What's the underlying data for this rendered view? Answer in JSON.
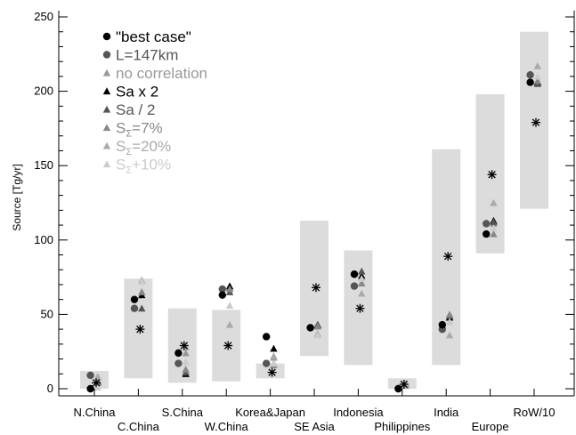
{
  "chart_data": {
    "type": "scatter",
    "ylabel": "Source [Tg/yr]",
    "ylim": [
      0,
      250
    ],
    "yticks": [
      0,
      50,
      100,
      150,
      200,
      250
    ],
    "grid": false,
    "legend_position": "top-left",
    "categories": [
      "N.China",
      "C.China",
      "S.China",
      "W.China",
      "Korea&Japan",
      "SE Asia",
      "Indonesia",
      "Philippines",
      "India",
      "Europe",
      "RoW/10"
    ],
    "ranges": [
      [
        0,
        12
      ],
      [
        7,
        74
      ],
      [
        4,
        54
      ],
      [
        5,
        53
      ],
      [
        7,
        17
      ],
      [
        22,
        113
      ],
      [
        16,
        93
      ],
      [
        0,
        7
      ],
      [
        16,
        161
      ],
      [
        91,
        198
      ],
      [
        121,
        240
      ]
    ],
    "reference": {
      "symbol": "asterisk",
      "color": "#000000",
      "values": [
        4,
        40,
        29,
        29,
        11,
        68,
        54,
        3,
        89,
        144,
        179
      ]
    },
    "series": [
      {
        "name": "\"best case\"",
        "marker": "circle",
        "color": "#000000",
        "values": [
          0,
          60,
          24,
          63,
          35,
          41,
          77,
          0,
          43,
          104,
          206
        ]
      },
      {
        "name": "L=147km",
        "marker": "circle",
        "color": "#555555",
        "values": [
          9,
          54,
          17,
          67,
          17,
          41,
          69,
          0,
          40,
          111,
          211
        ]
      },
      {
        "name": "no correlation",
        "marker": "triangle",
        "color": "#999999",
        "values": [
          8,
          65,
          24,
          68,
          21,
          43,
          71,
          4,
          48,
          111,
          206
        ]
      },
      {
        "name": "Sa x 2",
        "marker": "triangle",
        "color": "#000000",
        "values": [
          5,
          63,
          10,
          69,
          27,
          43,
          76,
          3,
          48,
          113,
          206
        ]
      },
      {
        "name": "Sa / 2",
        "marker": "triangle",
        "color": "#555555",
        "values": [
          5,
          54,
          11,
          65,
          17,
          43,
          79,
          3,
          49,
          112,
          205
        ]
      },
      {
        "name": "SΣ=7%",
        "marker": "triangle",
        "color": "#888888",
        "values": [
          4,
          65,
          13,
          67,
          16,
          42,
          71,
          3,
          50,
          104,
          207
        ]
      },
      {
        "name": "SΣ=20%",
        "marker": "triangle",
        "color": "#aaaaaa",
        "values": [
          8,
          73,
          28,
          43,
          22,
          37,
          64,
          2,
          36,
          125,
          217
        ]
      },
      {
        "name": "SΣ+10%",
        "marker": "triangle",
        "color": "#cccccc",
        "values": [
          1,
          72,
          18,
          56,
          17,
          36,
          74,
          4,
          45,
          108,
          210
        ]
      }
    ]
  },
  "legend": {
    "entries": [
      {
        "label": "\"best case\"",
        "marker": "circle",
        "color": "#000000"
      },
      {
        "label": "L=147km",
        "marker": "circle",
        "color": "#555555"
      },
      {
        "label": "no correlation",
        "marker": "triangle",
        "color": "#999999"
      },
      {
        "label": "Sa x 2",
        "marker": "triangle",
        "color": "#000000"
      },
      {
        "label": "Sa / 2",
        "marker": "triangle",
        "color": "#555555"
      },
      {
        "main": "S",
        "sub": "Σ",
        "rest": "=7%",
        "marker": "triangle",
        "color": "#888888"
      },
      {
        "main": "S",
        "sub": "Σ",
        "rest": "=20%",
        "marker": "triangle",
        "color": "#aaaaaa"
      },
      {
        "main": "S",
        "sub": "Σ",
        "rest": "+10%",
        "marker": "triangle",
        "color": "#cccccc"
      }
    ]
  },
  "colors": {
    "range_box": "#dcdcdc",
    "axis": "#000000"
  }
}
